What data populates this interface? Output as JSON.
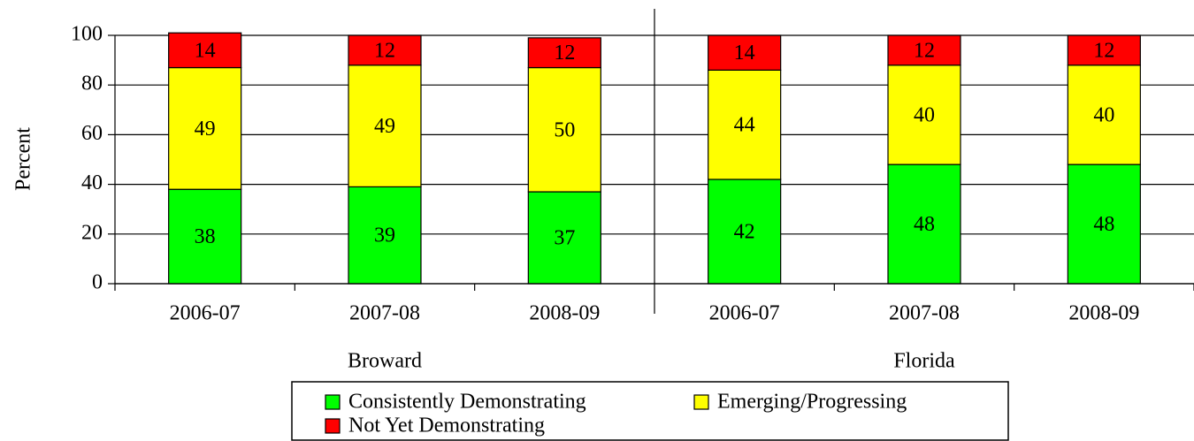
{
  "chart_data": {
    "type": "stacked_bar",
    "y_label": "Percent",
    "categories": [
      "2006-07",
      "2007-08",
      "2008-09",
      "2006-07",
      "2007-08",
      "2008-09"
    ],
    "groups": [
      "Broward",
      "Florida"
    ],
    "series": [
      {
        "name": "Consistently Demonstrating",
        "color": "#00ff00",
        "values": [
          38,
          39,
          37,
          42,
          48,
          48
        ]
      },
      {
        "name": "Emerging/Progressing",
        "color": "#ffff00",
        "values": [
          49,
          49,
          50,
          44,
          40,
          40
        ]
      },
      {
        "name": "Not Yet Demonstrating",
        "color": "#ff0000",
        "values": [
          14,
          12,
          12,
          14,
          12,
          12
        ]
      }
    ],
    "ylim": [
      0,
      100
    ],
    "yticks": [
      0,
      20,
      40,
      60,
      80,
      100
    ],
    "grid": true
  }
}
